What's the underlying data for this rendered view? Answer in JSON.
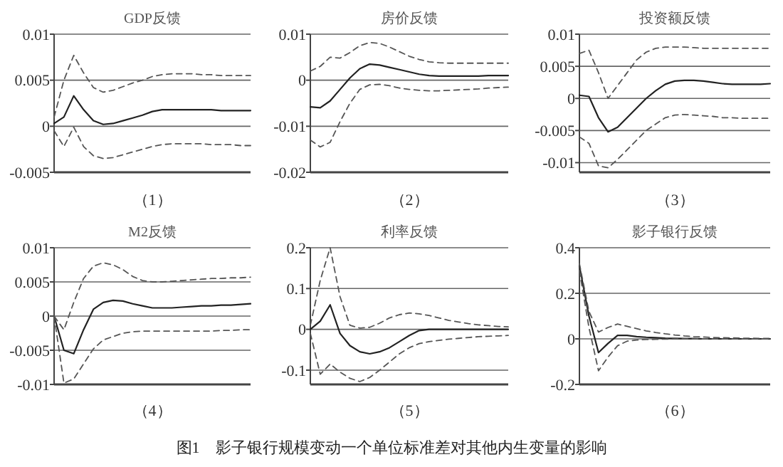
{
  "chart_data": [
    {
      "type": "line",
      "title": "GDP反馈",
      "xlabel": "（1）",
      "categories": [
        null,
        null,
        null,
        null,
        null,
        null,
        null,
        null,
        null,
        null,
        null,
        null,
        null,
        null,
        null,
        null,
        null,
        null,
        null,
        null,
        null
      ],
      "ylim": [
        -0.005,
        0.01
      ],
      "yticks": [
        -0.005,
        0,
        0.005,
        0.01
      ],
      "grid": "y",
      "tick_labels": "y",
      "series": [
        {
          "color": "#222222",
          "line_style": "solid",
          "values": [
            0.0003,
            0.001,
            0.0033,
            0.0018,
            0.0006,
            0.0002,
            0.0003,
            0.0006,
            0.0009,
            0.0012,
            0.0016,
            0.0018,
            0.0018,
            0.0018,
            0.0018,
            0.0018,
            0.0018,
            0.0017,
            0.0017,
            0.0017,
            0.0017
          ]
        },
        {
          "color": "#555555",
          "line_style": "dashed",
          "values": [
            0.001,
            0.005,
            0.0077,
            0.0058,
            0.0042,
            0.0037,
            0.0039,
            0.0043,
            0.0047,
            0.005,
            0.0054,
            0.0056,
            0.0057,
            0.0057,
            0.0057,
            0.0056,
            0.0056,
            0.0055,
            0.0055,
            0.0055,
            0.0055
          ]
        },
        {
          "color": "#555555",
          "line_style": "dashed",
          "values": [
            -0.0005,
            -0.0022,
            -0.0001,
            -0.0022,
            -0.0032,
            -0.0035,
            -0.0034,
            -0.0031,
            -0.0028,
            -0.0025,
            -0.0022,
            -0.002,
            -0.0019,
            -0.0019,
            -0.0019,
            -0.0019,
            -0.002,
            -0.002,
            -0.002,
            -0.0021,
            -0.0021
          ]
        }
      ]
    },
    {
      "type": "line",
      "title": "房价反馈",
      "xlabel": "（2）",
      "categories": [
        null,
        null,
        null,
        null,
        null,
        null,
        null,
        null,
        null,
        null,
        null,
        null,
        null,
        null,
        null,
        null,
        null,
        null,
        null,
        null,
        null
      ],
      "ylim": [
        -0.02,
        0.01
      ],
      "yticks": [
        -0.02,
        -0.01,
        0,
        0.01
      ],
      "grid": "y",
      "tick_labels": "y",
      "series": [
        {
          "color": "#222222",
          "line_style": "solid",
          "values": [
            -0.0058,
            -0.006,
            -0.0045,
            -0.002,
            0.0005,
            0.0025,
            0.0035,
            0.0033,
            0.0028,
            0.0023,
            0.0018,
            0.0013,
            0.001,
            0.0009,
            0.0009,
            0.0009,
            0.0009,
            0.0009,
            0.001,
            0.001,
            0.001
          ]
        },
        {
          "color": "#555555",
          "line_style": "dashed",
          "values": [
            0.002,
            0.003,
            0.005,
            0.0048,
            0.006,
            0.0075,
            0.0082,
            0.008,
            0.0072,
            0.0062,
            0.0052,
            0.0045,
            0.004,
            0.0038,
            0.0037,
            0.0037,
            0.0037,
            0.0037,
            0.0037,
            0.0037,
            0.0037
          ]
        },
        {
          "color": "#555555",
          "line_style": "dashed",
          "values": [
            -0.013,
            -0.0145,
            -0.0135,
            -0.009,
            -0.005,
            -0.002,
            -0.001,
            -0.0009,
            -0.0012,
            -0.0017,
            -0.002,
            -0.0022,
            -0.0023,
            -0.0023,
            -0.0022,
            -0.0021,
            -0.002,
            -0.0019,
            -0.0017,
            -0.0016,
            -0.0015
          ]
        }
      ]
    },
    {
      "type": "line",
      "title": "投资额反馈",
      "xlabel": "（3）",
      "categories": [
        null,
        null,
        null,
        null,
        null,
        null,
        null,
        null,
        null,
        null,
        null,
        null,
        null,
        null,
        null,
        null,
        null,
        null,
        null,
        null,
        null
      ],
      "ylim": [
        -0.0115,
        0.01
      ],
      "yticks": [
        -0.01,
        -0.005,
        0,
        0.005,
        0.01
      ],
      "grid": "y",
      "tick_labels": "y",
      "series": [
        {
          "color": "#222222",
          "line_style": "solid",
          "values": [
            0.0005,
            0.0003,
            -0.003,
            -0.0052,
            -0.0045,
            -0.003,
            -0.0015,
            0,
            0.0012,
            0.0022,
            0.0027,
            0.0028,
            0.0028,
            0.0027,
            0.0025,
            0.0023,
            0.0022,
            0.0022,
            0.0022,
            0.0022,
            0.0023
          ]
        },
        {
          "color": "#555555",
          "line_style": "dashed",
          "values": [
            0.007,
            0.0075,
            0.004,
            0,
            0.002,
            0.004,
            0.006,
            0.0072,
            0.0078,
            0.008,
            0.008,
            0.008,
            0.0079,
            0.0078,
            0.0078,
            0.0078,
            0.0078,
            0.0078,
            0.0078,
            0.0078,
            0.0078
          ]
        },
        {
          "color": "#555555",
          "line_style": "dashed",
          "values": [
            -0.006,
            -0.007,
            -0.0105,
            -0.0108,
            -0.0095,
            -0.008,
            -0.0065,
            -0.005,
            -0.004,
            -0.003,
            -0.0026,
            -0.0025,
            -0.0026,
            -0.0027,
            -0.0028,
            -0.003,
            -0.003,
            -0.0031,
            -0.0031,
            -0.0031,
            -0.0031
          ]
        }
      ]
    },
    {
      "type": "line",
      "title": "M2反馈",
      "xlabel": "（4）",
      "categories": [
        null,
        null,
        null,
        null,
        null,
        null,
        null,
        null,
        null,
        null,
        null,
        null,
        null,
        null,
        null,
        null,
        null,
        null,
        null,
        null,
        null
      ],
      "ylim": [
        -0.01,
        0.01
      ],
      "yticks": [
        -0.01,
        -0.005,
        0,
        0.005,
        0.01
      ],
      "grid": "y",
      "tick_labels": "y",
      "series": [
        {
          "color": "#222222",
          "line_style": "solid",
          "values": [
            0,
            -0.005,
            -0.0055,
            -0.002,
            0.001,
            0.002,
            0.0023,
            0.0022,
            0.0018,
            0.0015,
            0.0012,
            0.0012,
            0.0012,
            0.0013,
            0.0014,
            0.0015,
            0.0015,
            0.0016,
            0.0016,
            0.0017,
            0.0018
          ]
        },
        {
          "color": "#555555",
          "line_style": "dashed",
          "values": [
            0,
            -0.002,
            0.002,
            0.0055,
            0.0073,
            0.0078,
            0.0075,
            0.0068,
            0.0058,
            0.0052,
            0.005,
            0.005,
            0.0051,
            0.0052,
            0.0053,
            0.0054,
            0.0055,
            0.0055,
            0.0056,
            0.0056,
            0.0057
          ]
        },
        {
          "color": "#555555",
          "line_style": "dashed",
          "values": [
            0,
            -0.0098,
            -0.0092,
            -0.007,
            -0.0048,
            -0.0035,
            -0.003,
            -0.0025,
            -0.0023,
            -0.0022,
            -0.0022,
            -0.0022,
            -0.0022,
            -0.0022,
            -0.0022,
            -0.0022,
            -0.0022,
            -0.0021,
            -0.0021,
            -0.002,
            -0.002
          ]
        }
      ]
    },
    {
      "type": "line",
      "title": "利率反馈",
      "xlabel": "（5）",
      "categories": [
        null,
        null,
        null,
        null,
        null,
        null,
        null,
        null,
        null,
        null,
        null,
        null,
        null,
        null,
        null,
        null,
        null,
        null,
        null,
        null,
        null
      ],
      "ylim": [
        -0.135,
        0.2
      ],
      "yticks": [
        -0.1,
        0,
        0.1,
        0.2
      ],
      "grid": "y",
      "tick_labels": "y",
      "annotations": [
        "图1　影子银行规模变动一个单位标准差对其他内生变量的影响"
      ],
      "series": [
        {
          "color": "#222222",
          "line_style": "solid",
          "values": [
            0,
            0.02,
            0.06,
            -0.01,
            -0.04,
            -0.055,
            -0.06,
            -0.055,
            -0.045,
            -0.03,
            -0.015,
            -0.003,
            0,
            0,
            0,
            0,
            0,
            0,
            0,
            0,
            0
          ]
        },
        {
          "color": "#555555",
          "line_style": "dashed",
          "values": [
            0.01,
            0.12,
            0.2,
            0.08,
            0.01,
            0.003,
            0.005,
            0.015,
            0.028,
            0.036,
            0.04,
            0.038,
            0.034,
            0.028,
            0.022,
            0.018,
            0.014,
            0.011,
            0.009,
            0.007,
            0.006
          ]
        },
        {
          "color": "#555555",
          "line_style": "dashed",
          "values": [
            -0.01,
            -0.11,
            -0.085,
            -0.105,
            -0.12,
            -0.128,
            -0.118,
            -0.1,
            -0.08,
            -0.06,
            -0.045,
            -0.035,
            -0.03,
            -0.027,
            -0.024,
            -0.022,
            -0.02,
            -0.018,
            -0.017,
            -0.016,
            -0.015
          ]
        }
      ]
    },
    {
      "type": "line",
      "title": "影子银行反馈",
      "xlabel": "（6）",
      "categories": [
        null,
        null,
        null,
        null,
        null,
        null,
        null,
        null,
        null,
        null,
        null,
        null,
        null,
        null,
        null,
        null,
        null,
        null,
        null,
        null,
        null
      ],
      "ylim": [
        -0.2,
        0.4
      ],
      "yticks": [
        -0.2,
        0,
        0.2,
        0.4
      ],
      "grid": "y",
      "tick_labels": "y",
      "series": [
        {
          "color": "#222222",
          "line_style": "solid",
          "values": [
            0.32,
            0.1,
            -0.06,
            -0.02,
            0.015,
            0.015,
            0.01,
            0.007,
            0.005,
            0.003,
            0.002,
            0.001,
            0.001,
            0,
            0,
            0,
            0,
            0,
            0,
            0,
            0
          ]
        },
        {
          "color": "#555555",
          "line_style": "dashed",
          "values": [
            0.33,
            0.12,
            0.03,
            0.05,
            0.065,
            0.055,
            0.045,
            0.035,
            0.028,
            0.022,
            0.017,
            0.013,
            0.01,
            0.008,
            0.006,
            0.005,
            0.004,
            0.003,
            0.003,
            0.002,
            0.002
          ]
        },
        {
          "color": "#555555",
          "line_style": "dashed",
          "values": [
            0.3,
            0.05,
            -0.14,
            -0.08,
            -0.03,
            -0.01,
            -0.005,
            -0.003,
            -0.002,
            -0.001,
            0,
            0,
            0,
            0,
            0,
            0,
            0,
            0,
            0,
            0,
            0
          ]
        }
      ]
    }
  ]
}
